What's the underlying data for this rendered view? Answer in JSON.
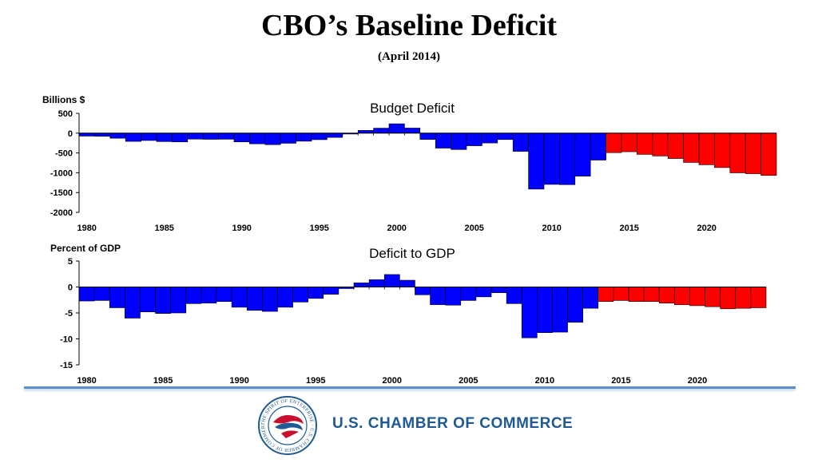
{
  "page": {
    "title": "CBO’s Baseline Deficit",
    "subtitle": "(April 2014)"
  },
  "colors": {
    "actual": "#0000ff",
    "projected": "#ff0000",
    "axis": "#000000",
    "brand": "#1f5a96"
  },
  "chart_data": [
    {
      "type": "bar",
      "title": "Budget Deficit",
      "ylabel": "Billions $",
      "xlabel": "",
      "ylim": [
        -2000,
        500
      ],
      "yticks": [
        500,
        0,
        -500,
        -1000,
        -1500,
        -2000
      ],
      "x": [
        1980,
        1981,
        1982,
        1983,
        1984,
        1985,
        1986,
        1987,
        1988,
        1989,
        1990,
        1991,
        1992,
        1993,
        1994,
        1995,
        1996,
        1997,
        1998,
        1999,
        2000,
        2001,
        2002,
        2003,
        2004,
        2005,
        2006,
        2007,
        2008,
        2009,
        2010,
        2011,
        2012,
        2013,
        2014,
        2015,
        2016,
        2017,
        2018,
        2019,
        2020,
        2021,
        2022,
        2023,
        2024
      ],
      "xticks": [
        1980,
        1985,
        1990,
        1995,
        2000,
        2005,
        2010,
        2015,
        2020
      ],
      "series": [
        {
          "values": [
            -74,
            -79,
            -128,
            -208,
            -185,
            -212,
            -221,
            -150,
            -155,
            -153,
            -221,
            -269,
            -290,
            -255,
            -203,
            -164,
            -107,
            -22,
            69,
            126,
            236,
            128,
            -158,
            -378,
            -413,
            -318,
            -248,
            -161,
            -459,
            -1413,
            -1294,
            -1300,
            -1087,
            -680,
            -492,
            -469,
            -536,
            -576,
            -640,
            -739,
            -798,
            -869,
            -1002,
            -1023,
            -1068
          ]
        }
      ],
      "projected_from": 2014,
      "grid": false
    },
    {
      "type": "bar",
      "title": "Deficit to GDP",
      "ylabel": "Percent of GDP",
      "xlabel": "",
      "ylim": [
        -15,
        5
      ],
      "yticks": [
        5,
        0,
        -5,
        -10,
        -15
      ],
      "x": [
        1980,
        1981,
        1982,
        1983,
        1984,
        1985,
        1986,
        1987,
        1988,
        1989,
        1990,
        1991,
        1992,
        1993,
        1994,
        1995,
        1996,
        1997,
        1998,
        1999,
        2000,
        2001,
        2002,
        2003,
        2004,
        2005,
        2006,
        2007,
        2008,
        2009,
        2010,
        2011,
        2012,
        2013,
        2014,
        2015,
        2016,
        2017,
        2018,
        2019,
        2020,
        2021,
        2022,
        2023,
        2024
      ],
      "xticks": [
        1980,
        1985,
        1990,
        1995,
        2000,
        2005,
        2010,
        2015,
        2020
      ],
      "series": [
        {
          "values": [
            -2.7,
            -2.6,
            -4.0,
            -6.0,
            -4.8,
            -5.1,
            -5.0,
            -3.2,
            -3.1,
            -2.8,
            -3.9,
            -4.5,
            -4.7,
            -3.9,
            -2.9,
            -2.2,
            -1.4,
            -0.3,
            0.8,
            1.4,
            2.4,
            1.3,
            -1.5,
            -3.4,
            -3.5,
            -2.6,
            -1.9,
            -1.1,
            -3.2,
            -9.8,
            -8.8,
            -8.7,
            -6.8,
            -4.1,
            -2.8,
            -2.6,
            -2.8,
            -2.8,
            -3.1,
            -3.4,
            -3.6,
            -3.8,
            -4.2,
            -4.1,
            -4.0
          ]
        }
      ],
      "projected_from": 2014,
      "grid": false
    }
  ],
  "footer": {
    "org_name": "U.S. CHAMBER OF COMMERCE",
    "seal_text": "THE SPIRIT OF ENTERPRISE · U.S. CHAMBER OF COMMERCE ·"
  }
}
